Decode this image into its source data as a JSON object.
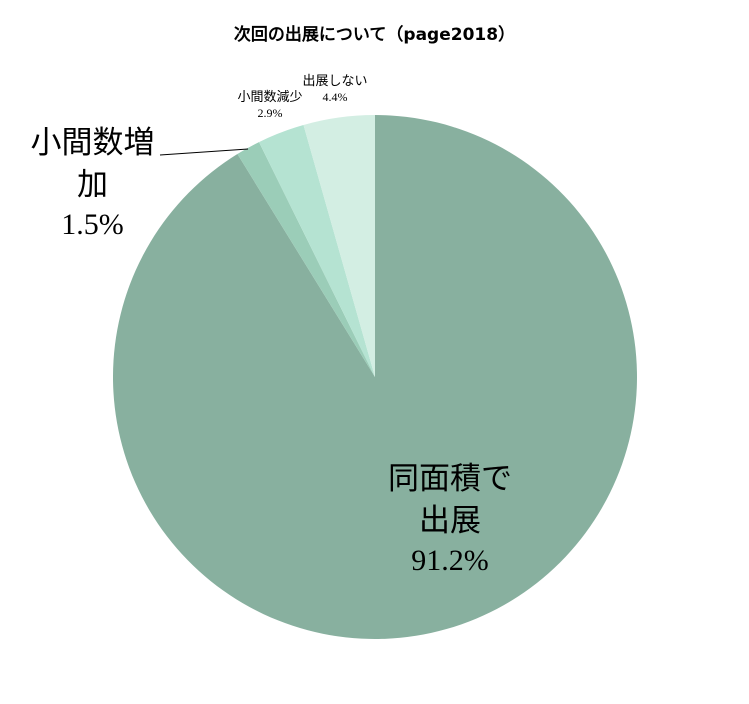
{
  "chart_data": {
    "type": "pie",
    "title": "次回の出展について（page2018）",
    "slices": [
      {
        "label": "同面積で出展",
        "value": 91.2,
        "pct_text": "91.2%",
        "color": "#88b09f"
      },
      {
        "label": "小間数増加",
        "value": 1.5,
        "pct_text": "1.5%",
        "color": "#9bcdb8"
      },
      {
        "label": "小間数減少",
        "value": 2.9,
        "pct_text": "2.9%",
        "color": "#b5e3d2"
      },
      {
        "label": "出展しない",
        "value": 4.4,
        "pct_text": "4.4%",
        "color": "#d3eee3"
      }
    ],
    "start_angle_deg": 0,
    "direction": "clockwise",
    "legend": "none"
  }
}
